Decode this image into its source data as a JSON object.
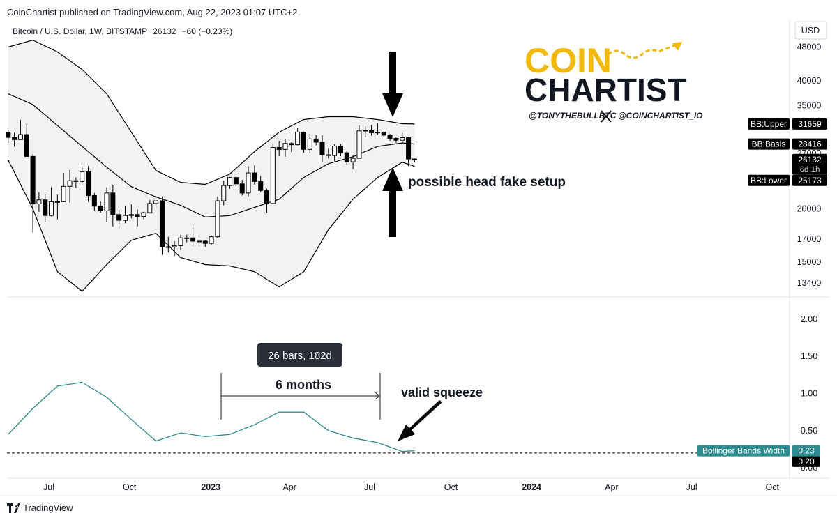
{
  "header": {
    "published": "CoinChartist published on TradingView.com, Aug 22, 2023 01:07 UTC+2"
  },
  "logo": {
    "line1": "COIN",
    "line2": "CHARTIST",
    "handle1": "@TONYTHEBULLBTC",
    "handle2": "@COINCHARTIST_IO"
  },
  "footer": "TradingView",
  "chart_data": [
    {
      "type": "candlestick",
      "title": "Bitcoin / U.S. Dollar, 1W, BITSTAMP",
      "change": "−60 (−0.23%)",
      "currency": "USD",
      "countdown": "6d 1h",
      "annotations": [
        "possible head fake setup"
      ],
      "log_scale": true,
      "grid": false,
      "up_color": "#ffffff",
      "down_color": "#000000",
      "band_fill": "#f2f2f2",
      "xlim": [
        -0.2,
        126.9
      ],
      "ylim": [
        12470,
        55300
      ],
      "yticks": [
        48000,
        40000,
        35000,
        27000,
        20000,
        17000,
        15000,
        13400
      ],
      "x": [
        0,
        1,
        2,
        3,
        4,
        5,
        6,
        7,
        8,
        9,
        10,
        11,
        12,
        13,
        14,
        15,
        16,
        17,
        18,
        19,
        20,
        21,
        22,
        23,
        24,
        25,
        26,
        27,
        28,
        29,
        30,
        31,
        32,
        33,
        34,
        35,
        36,
        37,
        38,
        39,
        40,
        41,
        42,
        43,
        44,
        45,
        46,
        47,
        48,
        49,
        50,
        51,
        52,
        53,
        54,
        55,
        56,
        57,
        58,
        59,
        60,
        61,
        62,
        63,
        64,
        65,
        66
      ],
      "open": [
        30300,
        29450,
        29100,
        29900,
        26570,
        20550,
        21000,
        19300,
        20800,
        20800,
        22600,
        23300,
        23200,
        24450,
        21500,
        20300,
        19800,
        21800,
        19400,
        18800,
        19300,
        19400,
        19200,
        19600,
        20600,
        20900,
        16300,
        16300,
        16400,
        17100,
        17100,
        16800,
        16800,
        16600,
        17200,
        20900,
        22700,
        23700,
        22900,
        21800,
        24300,
        23200,
        22100,
        20600,
        27900,
        27600,
        28500,
        28300,
        30300,
        27600,
        29200,
        28700,
        26800,
        26700,
        28100,
        27100,
        25800,
        26300,
        30500,
        30600,
        30200,
        30300,
        29800,
        29300,
        29000,
        29400,
        26200
      ],
      "high": [
        30700,
        30200,
        32400,
        31700,
        26900,
        21900,
        21600,
        22500,
        21600,
        24300,
        24700,
        23700,
        25200,
        25200,
        21800,
        20800,
        22500,
        22800,
        19900,
        20300,
        20500,
        19950,
        19700,
        21000,
        21400,
        21400,
        17200,
        16800,
        17400,
        17400,
        18400,
        17000,
        16900,
        17300,
        21400,
        23300,
        23800,
        24200,
        23400,
        25200,
        25300,
        23900,
        22300,
        28400,
        28900,
        29200,
        28700,
        31000,
        30400,
        30000,
        29800,
        29800,
        27700,
        28400,
        28400,
        27400,
        26800,
        31400,
        31300,
        31500,
        31800,
        30400,
        30000,
        29500,
        30200,
        29500,
        26300
      ],
      "low": [
        28600,
        28000,
        29300,
        26600,
        17600,
        19700,
        18600,
        19200,
        18900,
        20800,
        20700,
        22400,
        22700,
        20800,
        19800,
        19600,
        18600,
        18200,
        18100,
        18500,
        19000,
        18200,
        18900,
        19500,
        20100,
        15600,
        15800,
        15500,
        16000,
        16700,
        16400,
        16400,
        16300,
        16500,
        17100,
        20400,
        22300,
        22600,
        21500,
        21400,
        22800,
        21900,
        19600,
        20500,
        26600,
        26500,
        27200,
        28200,
        27100,
        27000,
        28200,
        25800,
        26300,
        25900,
        26600,
        25400,
        24800,
        26300,
        29500,
        29700,
        29900,
        29500,
        28900,
        28600,
        28800,
        25200,
        25800
      ],
      "close": [
        29450,
        29100,
        29900,
        26570,
        20550,
        21000,
        19300,
        20800,
        20800,
        22600,
        23300,
        23200,
        24450,
        21500,
        20300,
        19800,
        21800,
        19400,
        18800,
        19300,
        19400,
        19200,
        19600,
        20600,
        20900,
        16300,
        16300,
        16400,
        17100,
        17100,
        16800,
        16800,
        16600,
        17200,
        20900,
        22700,
        23700,
        22900,
        21800,
        24300,
        23200,
        22100,
        20600,
        27900,
        27600,
        28500,
        28300,
        30300,
        27600,
        29200,
        28700,
        26800,
        26700,
        28100,
        27100,
        25800,
        26300,
        30500,
        30600,
        30200,
        30300,
        29800,
        29300,
        29000,
        29400,
        26200,
        26132
      ],
      "bands": [
        {
          "name": "BB:Upper",
          "color": "#000000",
          "x": [
            0,
            4,
            8,
            12,
            16,
            20,
            24,
            28,
            32,
            36,
            40,
            44,
            48,
            52,
            56,
            60,
            64,
            66
          ],
          "values": [
            48000,
            49850,
            46750,
            42540,
            37270,
            30300,
            24620,
            23090,
            22840,
            24160,
            27270,
            30300,
            32430,
            32930,
            32930,
            32430,
            31710,
            31659
          ]
        },
        {
          "name": "BB:Basis",
          "color": "#000000",
          "x": [
            0,
            4,
            8,
            12,
            16,
            20,
            24,
            28,
            32,
            36,
            40,
            44,
            48,
            52,
            56,
            60,
            64,
            66
          ],
          "values": [
            37270,
            35170,
            31400,
            28040,
            25070,
            22560,
            21340,
            20400,
            19140,
            19290,
            20170,
            21080,
            23710,
            25550,
            26530,
            28040,
            28580,
            28416
          ]
        },
        {
          "name": "BB:Lower",
          "color": "#000000",
          "x": [
            0,
            4,
            8,
            12,
            16,
            20,
            24,
            28,
            32,
            36,
            40,
            44,
            48,
            52,
            56,
            60,
            64,
            66
          ],
          "values": [
            26040,
            20010,
            14240,
            12810,
            14800,
            16880,
            17530,
            15370,
            14800,
            14690,
            14240,
            13110,
            14240,
            17870,
            21080,
            23710,
            25750,
            25173
          ]
        }
      ]
    },
    {
      "type": "line",
      "annotations": [
        "26 bars, 182d",
        "6 months",
        "valid squeeze"
      ],
      "grid": false,
      "xlim": [
        -0.2,
        126.9
      ],
      "xticks": [
        {
          "value": 6.6,
          "label": "Jul"
        },
        {
          "value": 19.7,
          "label": "Oct"
        },
        {
          "value": 32.9,
          "label": "2023"
        },
        {
          "value": 45.7,
          "label": "Apr"
        },
        {
          "value": 58.7,
          "label": "Jul"
        },
        {
          "value": 71.9,
          "label": "Oct"
        },
        {
          "value": 85,
          "label": "2024"
        },
        {
          "value": 98,
          "label": "Apr"
        },
        {
          "value": 111,
          "label": "Jul"
        },
        {
          "value": 124.1,
          "label": "Oct"
        }
      ],
      "ylim": [
        -0.13,
        2.29
      ],
      "yticks": [
        {
          "value": 2,
          "label": "2.00"
        },
        {
          "value": 1.5,
          "label": "1.50"
        },
        {
          "value": 1,
          "label": "1.00"
        },
        {
          "value": 0.5,
          "label": "0.50"
        },
        {
          "value": 0,
          "label": "0.00"
        }
      ],
      "reference": {
        "value": 0.2,
        "label": "0.20"
      },
      "series": [
        {
          "name": "Bollinger Bands Width",
          "color": "#2e8b8f",
          "x": [
            0,
            4,
            8,
            12,
            16,
            20,
            24,
            28,
            32,
            36,
            40,
            44,
            48,
            52,
            56,
            60,
            64,
            66
          ],
          "values": [
            0.45,
            0.8,
            1.1,
            1.15,
            0.95,
            0.65,
            0.36,
            0.47,
            0.42,
            0.45,
            0.58,
            0.75,
            0.75,
            0.5,
            0.4,
            0.34,
            0.22,
            0.23
          ]
        }
      ]
    }
  ]
}
